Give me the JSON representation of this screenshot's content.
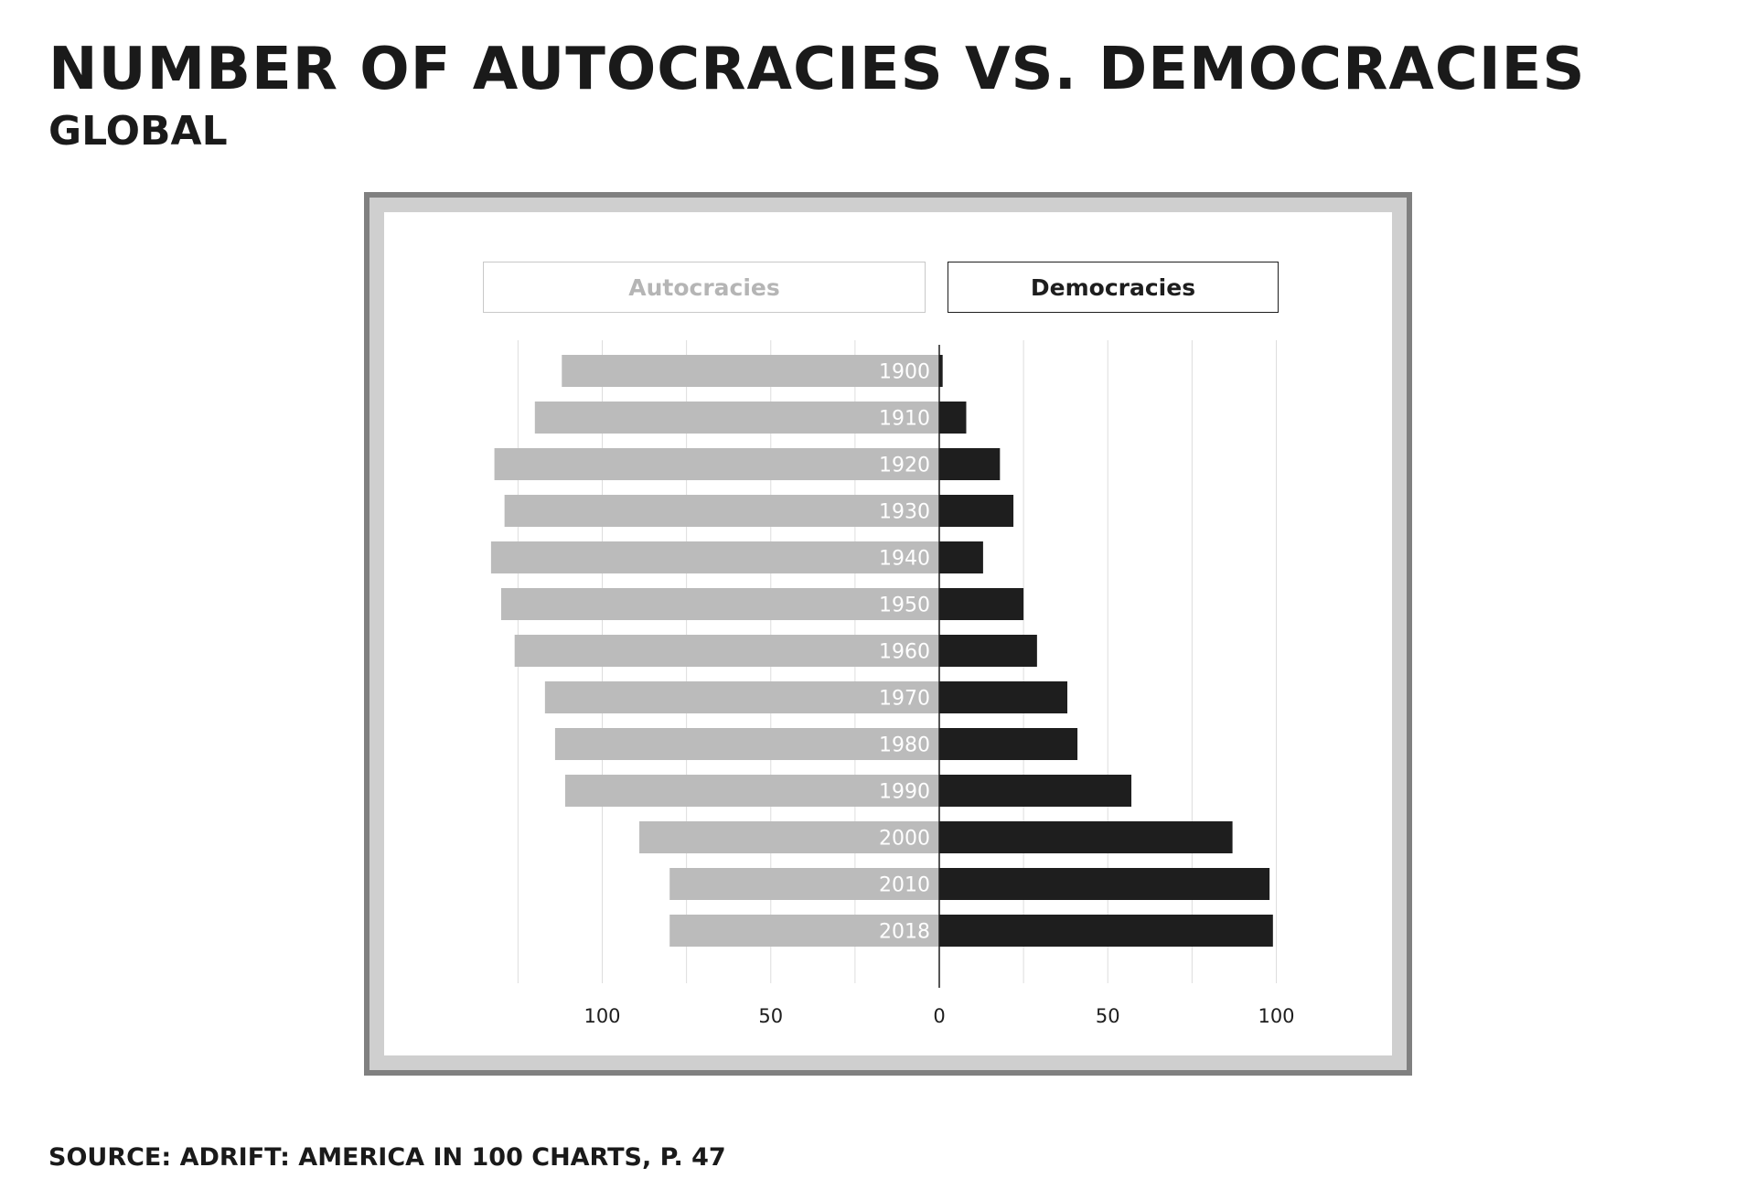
{
  "header": {
    "title": "Number of autocracies vs. democracies",
    "subtitle": "Global"
  },
  "footer": {
    "source": "Source: Adrift: America in 100 Charts, p. 47"
  },
  "colors": {
    "autocracies": "#bbbbbb",
    "democracies": "#1e1e1e",
    "grid": "#dddddd",
    "frame_outer": "#808080",
    "frame_mid": "#cfcfcf"
  },
  "chart_data": {
    "type": "bar",
    "orientation": "horizontal-diverging",
    "title": "",
    "xlabel": "",
    "ylabel": "",
    "categories": [
      "1900",
      "1910",
      "1920",
      "1930",
      "1940",
      "1950",
      "1960",
      "1970",
      "1980",
      "1990",
      "2000",
      "2010",
      "2018"
    ],
    "series": [
      {
        "name": "Autocracies",
        "side": "left",
        "values": [
          112,
          120,
          132,
          129,
          133,
          130,
          126,
          117,
          114,
          111,
          89,
          80,
          80
        ]
      },
      {
        "name": "Democracies",
        "side": "right",
        "values": [
          1,
          8,
          18,
          22,
          13,
          25,
          29,
          38,
          41,
          57,
          87,
          98,
          99
        ]
      }
    ],
    "xlim": [
      -135,
      100
    ],
    "xticks": [
      -100,
      -50,
      0,
      50,
      100
    ],
    "xtick_labels": [
      "100",
      "50",
      "0",
      "50",
      "100"
    ],
    "grid": true,
    "legend": "top"
  }
}
